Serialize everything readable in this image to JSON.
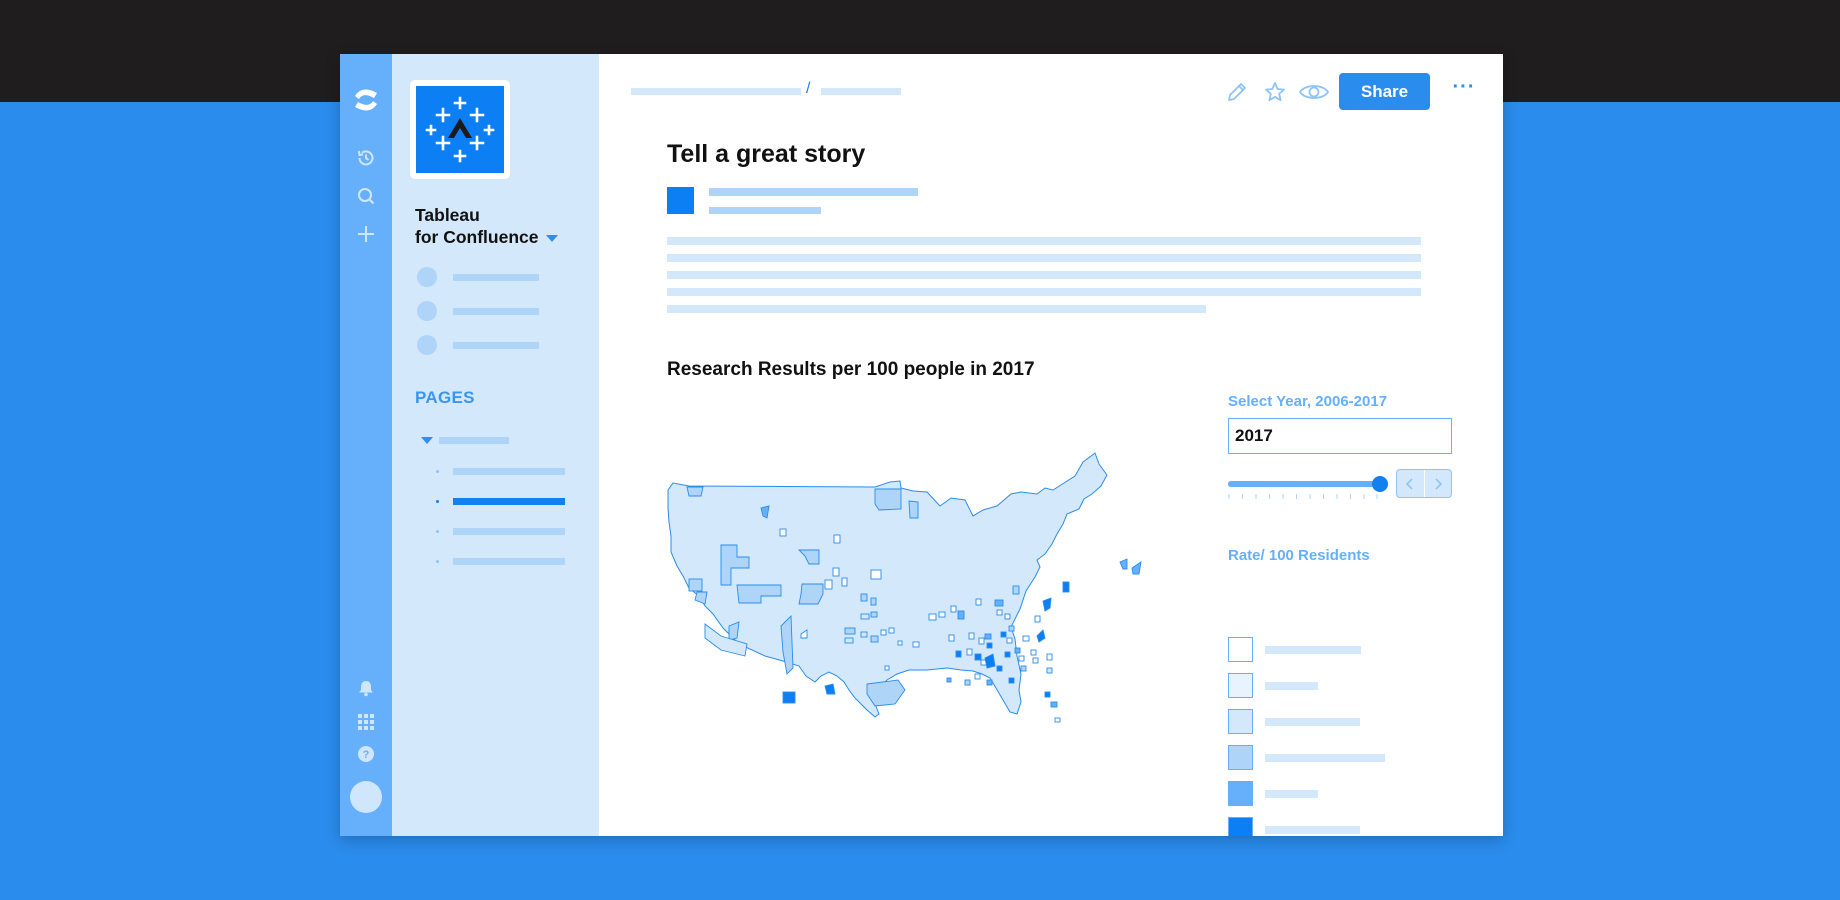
{
  "space": {
    "name_line1": "Tableau",
    "name_line2": "for Confluence",
    "pages_heading": "PAGES"
  },
  "header": {
    "breadcrumb_separator": "/",
    "share_label": "Share",
    "more_label": "···"
  },
  "page": {
    "title": "Tell a great story"
  },
  "viz": {
    "title": "Research Results per 100 people in 2017",
    "year_filter_label": "Select Year, 2006-2017",
    "year_value": "2017",
    "year_slider_fraction": 1.0,
    "legend_title": "Rate/ 100 Residents",
    "legend_colors": [
      "#ffffff",
      "#e9f3fd",
      "#d4e8fb",
      "#aed4f8",
      "#66b0fb",
      "#0d7ff5"
    ]
  },
  "colors": {
    "accent": "#2a8cec",
    "rail": "#66b0fb",
    "sidebar": "#d4e8fb",
    "map_fill": "#d4e8fb",
    "map_stroke": "#2a8cec"
  },
  "icons": {
    "rail": [
      "confluence-logo-icon",
      "recent-history-icon",
      "search-icon",
      "create-plus-icon",
      "notifications-bell-icon",
      "app-switcher-grid-icon",
      "help-icon"
    ],
    "toolbar": [
      "edit-pencil-icon",
      "star-icon",
      "watch-eye-icon"
    ]
  }
}
